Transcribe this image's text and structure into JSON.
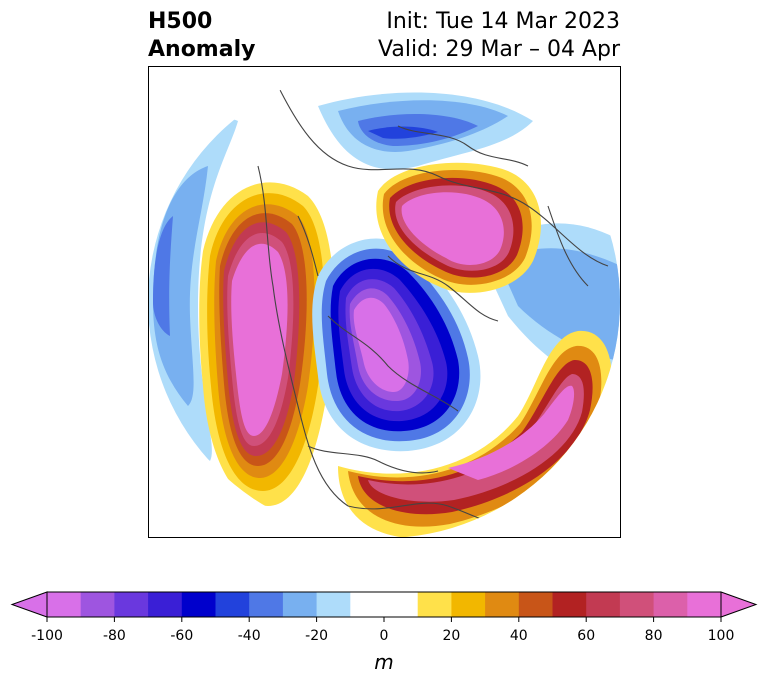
{
  "title": {
    "left_line1": "H500",
    "left_line2": "Anomaly",
    "right_line1": "Init: Tue 14 Mar 2023",
    "right_line2": "Valid: 29 Mar – 04 Apr"
  },
  "colorbar": {
    "label": "m",
    "min": -100,
    "max": 100,
    "step": 10,
    "ticks": [
      "-100",
      "-80",
      "-60",
      "-40",
      "-20",
      "0",
      "20",
      "40",
      "60",
      "80",
      "100"
    ],
    "extend": "both",
    "colors": [
      "#d870e8",
      "#9e55e0",
      "#6a38de",
      "#3a1fd6",
      "#0000cc",
      "#2242dc",
      "#4f78e6",
      "#78b0f0",
      "#aedcfa",
      "#ffffff",
      "#ffffff",
      "#ffe14a",
      "#f2b700",
      "#e08a12",
      "#c85518",
      "#b22222",
      "#c23a52",
      "#d0507a",
      "#dc60aa",
      "#e870d8"
    ]
  },
  "map": {
    "projection": "polar stereographic (north pole)",
    "coastlines": true,
    "borders": true,
    "coastline_color": "#444444"
  }
}
